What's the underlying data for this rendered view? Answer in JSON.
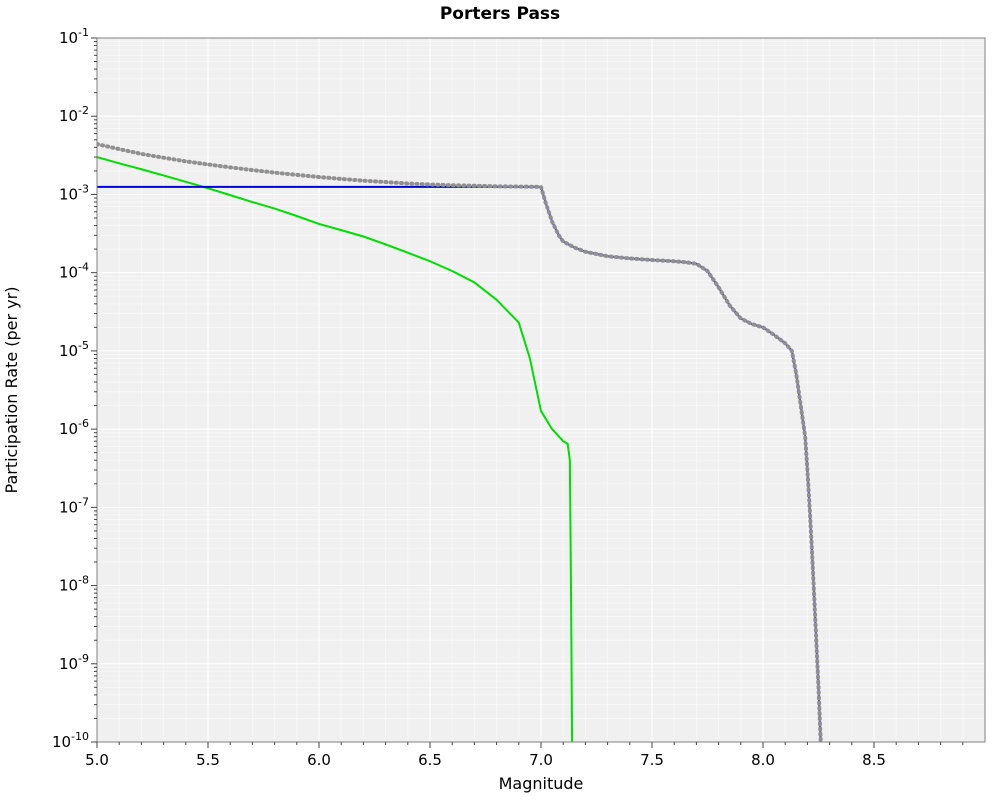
{
  "figure": {
    "title": "Porters Pass",
    "xlabel": "Magnitude",
    "ylabel": "Participation Rate (per yr)"
  },
  "chart_data": {
    "type": "line",
    "title": "Porters Pass",
    "xlabel": "Magnitude",
    "ylabel": "Participation Rate (per yr)",
    "xlim": [
      5.0,
      9.0
    ],
    "ylim": [
      1e-10,
      0.1
    ],
    "x_ticks": [
      5.0,
      5.5,
      6.0,
      6.5,
      7.0,
      7.5,
      8.0,
      8.5
    ],
    "x_tick_labels": [
      "5.0",
      "5.5",
      "6.0",
      "6.5",
      "7.0",
      "7.5",
      "8.0",
      "8.5"
    ],
    "y_tick_exponents": [
      -1,
      -2,
      -3,
      -4,
      -5,
      -6,
      -7,
      -8,
      -9,
      -10
    ],
    "grid": true,
    "legend": false,
    "plot_bg": "#f0f0f0",
    "grid_color": "#ffffff",
    "border_color": "#808080",
    "tick_color": "#444444",
    "series": [
      {
        "name": "green-curve",
        "color": "#00dd00",
        "style": "solid",
        "width": 2,
        "points": [
          [
            5.0,
            0.003
          ],
          [
            5.1,
            0.0025
          ],
          [
            5.2,
            0.0021
          ],
          [
            5.3,
            0.00175
          ],
          [
            5.4,
            0.00145
          ],
          [
            5.5,
            0.0012
          ],
          [
            5.6,
            0.00098
          ],
          [
            5.7,
            0.0008
          ],
          [
            5.8,
            0.00066
          ],
          [
            5.9,
            0.00053
          ],
          [
            6.0,
            0.00042
          ],
          [
            6.1,
            0.00035
          ],
          [
            6.2,
            0.00029
          ],
          [
            6.3,
            0.00023
          ],
          [
            6.4,
            0.00018
          ],
          [
            6.5,
            0.00014
          ],
          [
            6.6,
            0.000105
          ],
          [
            6.7,
            7.5e-05
          ],
          [
            6.8,
            4.5e-05
          ],
          [
            6.9,
            2.3e-05
          ],
          [
            6.95,
            8e-06
          ],
          [
            7.0,
            1.7e-06
          ],
          [
            7.05,
            1e-06
          ],
          [
            7.1,
            7e-07
          ],
          [
            7.12,
            6.5e-07
          ],
          [
            7.13,
            4e-07
          ],
          [
            7.135,
            1e-08
          ],
          [
            7.14,
            1e-10
          ]
        ]
      },
      {
        "name": "blue-curve",
        "color": "#0000dd",
        "style": "solid",
        "width": 2,
        "points": [
          [
            5.0,
            0.00125
          ],
          [
            5.5,
            0.00125
          ],
          [
            6.0,
            0.00125
          ],
          [
            6.5,
            0.00125
          ],
          [
            7.0,
            0.00125
          ],
          [
            7.02,
            0.0008
          ],
          [
            7.05,
            0.00045
          ],
          [
            7.08,
            0.0003
          ],
          [
            7.1,
            0.00025
          ],
          [
            7.15,
            0.00021
          ],
          [
            7.2,
            0.000185
          ],
          [
            7.3,
            0.000162
          ],
          [
            7.4,
            0.000152
          ],
          [
            7.5,
            0.000145
          ],
          [
            7.6,
            0.00014
          ],
          [
            7.65,
            0.000136
          ],
          [
            7.7,
            0.00013
          ],
          [
            7.75,
            0.000105
          ],
          [
            7.8,
            6.5e-05
          ],
          [
            7.85,
            3.8e-05
          ],
          [
            7.9,
            2.6e-05
          ],
          [
            7.95,
            2.2e-05
          ],
          [
            8.0,
            2e-05
          ],
          [
            8.05,
            1.6e-05
          ],
          [
            8.1,
            1.25e-05
          ],
          [
            8.13,
            1e-05
          ],
          [
            8.15,
            5e-06
          ],
          [
            8.17,
            2e-06
          ],
          [
            8.19,
            8e-07
          ],
          [
            8.2,
            3e-07
          ],
          [
            8.21,
            1e-07
          ],
          [
            8.22,
            3e-08
          ],
          [
            8.23,
            8e-09
          ],
          [
            8.24,
            2e-09
          ],
          [
            8.25,
            5e-10
          ],
          [
            8.26,
            1e-10
          ]
        ]
      },
      {
        "name": "gray-dotted-curve",
        "color": "#909090",
        "style": "dotted",
        "width": 4,
        "points": [
          [
            5.0,
            0.0044
          ],
          [
            5.1,
            0.0038
          ],
          [
            5.2,
            0.0033
          ],
          [
            5.3,
            0.00295
          ],
          [
            5.4,
            0.00265
          ],
          [
            5.5,
            0.00242
          ],
          [
            5.6,
            0.00222
          ],
          [
            5.7,
            0.00205
          ],
          [
            5.8,
            0.0019
          ],
          [
            5.9,
            0.00178
          ],
          [
            6.0,
            0.00167
          ],
          [
            6.1,
            0.00158
          ],
          [
            6.2,
            0.0015
          ],
          [
            6.3,
            0.00144
          ],
          [
            6.4,
            0.00138
          ],
          [
            6.5,
            0.00134
          ],
          [
            6.6,
            0.00131
          ],
          [
            6.7,
            0.00129
          ],
          [
            6.8,
            0.00127
          ],
          [
            6.9,
            0.00126
          ],
          [
            7.0,
            0.00125
          ],
          [
            7.02,
            0.0008
          ],
          [
            7.05,
            0.00045
          ],
          [
            7.08,
            0.0003
          ],
          [
            7.1,
            0.00025
          ],
          [
            7.15,
            0.00021
          ],
          [
            7.2,
            0.000185
          ],
          [
            7.3,
            0.000162
          ],
          [
            7.4,
            0.000152
          ],
          [
            7.5,
            0.000145
          ],
          [
            7.6,
            0.00014
          ],
          [
            7.65,
            0.000136
          ],
          [
            7.7,
            0.00013
          ],
          [
            7.75,
            0.000105
          ],
          [
            7.8,
            6.5e-05
          ],
          [
            7.85,
            3.8e-05
          ],
          [
            7.9,
            2.6e-05
          ],
          [
            7.95,
            2.2e-05
          ],
          [
            8.0,
            2e-05
          ],
          [
            8.05,
            1.6e-05
          ],
          [
            8.1,
            1.25e-05
          ],
          [
            8.13,
            1e-05
          ],
          [
            8.15,
            5e-06
          ],
          [
            8.17,
            2e-06
          ],
          [
            8.19,
            8e-07
          ],
          [
            8.2,
            3e-07
          ],
          [
            8.21,
            1e-07
          ],
          [
            8.22,
            3e-08
          ],
          [
            8.23,
            8e-09
          ],
          [
            8.24,
            2e-09
          ],
          [
            8.25,
            5e-10
          ],
          [
            8.26,
            1e-10
          ]
        ]
      }
    ]
  }
}
